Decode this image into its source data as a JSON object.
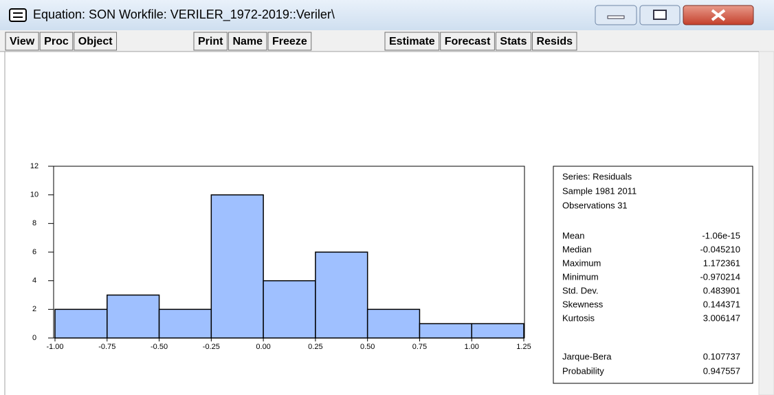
{
  "window": {
    "title": "Equation: SON   Workfile: VERILER_1972-2019::Veriler\\"
  },
  "toolbar": {
    "groups": [
      [
        "View",
        "Proc",
        "Object"
      ],
      [
        "Print",
        "Name",
        "Freeze"
      ],
      [
        "Estimate",
        "Forecast",
        "Stats",
        "Resids"
      ]
    ]
  },
  "chart_data": {
    "type": "histogram",
    "bins": [
      -1.0,
      -0.75,
      -0.5,
      -0.25,
      0.0,
      0.25,
      0.5,
      0.75,
      1.0,
      1.25
    ],
    "values": [
      2,
      3,
      2,
      10,
      4,
      6,
      2,
      1,
      1
    ],
    "color": "#9fc0ff",
    "xlim": [
      -1.0,
      1.25
    ],
    "xticks": [
      {
        "value": -1.0,
        "label": "-1.00"
      },
      {
        "value": -0.75,
        "label": "-0.75"
      },
      {
        "value": -0.5,
        "label": "-0.50"
      },
      {
        "value": -0.25,
        "label": "-0.25"
      },
      {
        "value": 0.0,
        "label": "0.00"
      },
      {
        "value": 0.25,
        "label": "0.25"
      },
      {
        "value": 0.5,
        "label": "0.50"
      },
      {
        "value": 0.75,
        "label": "0.75"
      },
      {
        "value": 1.0,
        "label": "1.00"
      },
      {
        "value": 1.25,
        "label": "1.25"
      }
    ],
    "ylim": [
      0,
      12
    ],
    "yticks": [
      0,
      2,
      4,
      6,
      8,
      10,
      12
    ]
  },
  "stats": {
    "header": [
      "Series: Residuals",
      "Sample 1981 2011",
      "Observations 31"
    ],
    "rows": [
      [
        "Mean",
        "-1.06e-15"
      ],
      [
        "Median",
        "-0.045210"
      ],
      [
        "Maximum",
        "1.172361"
      ],
      [
        "Minimum",
        "-0.970214"
      ],
      [
        "Std. Dev.",
        "0.483901"
      ],
      [
        "Skewness",
        "0.144371"
      ],
      [
        "Kurtosis",
        "3.006147"
      ]
    ],
    "tests": [
      [
        "Jarque-Bera",
        "0.107737"
      ],
      [
        "Probability",
        "0.947557"
      ]
    ]
  }
}
